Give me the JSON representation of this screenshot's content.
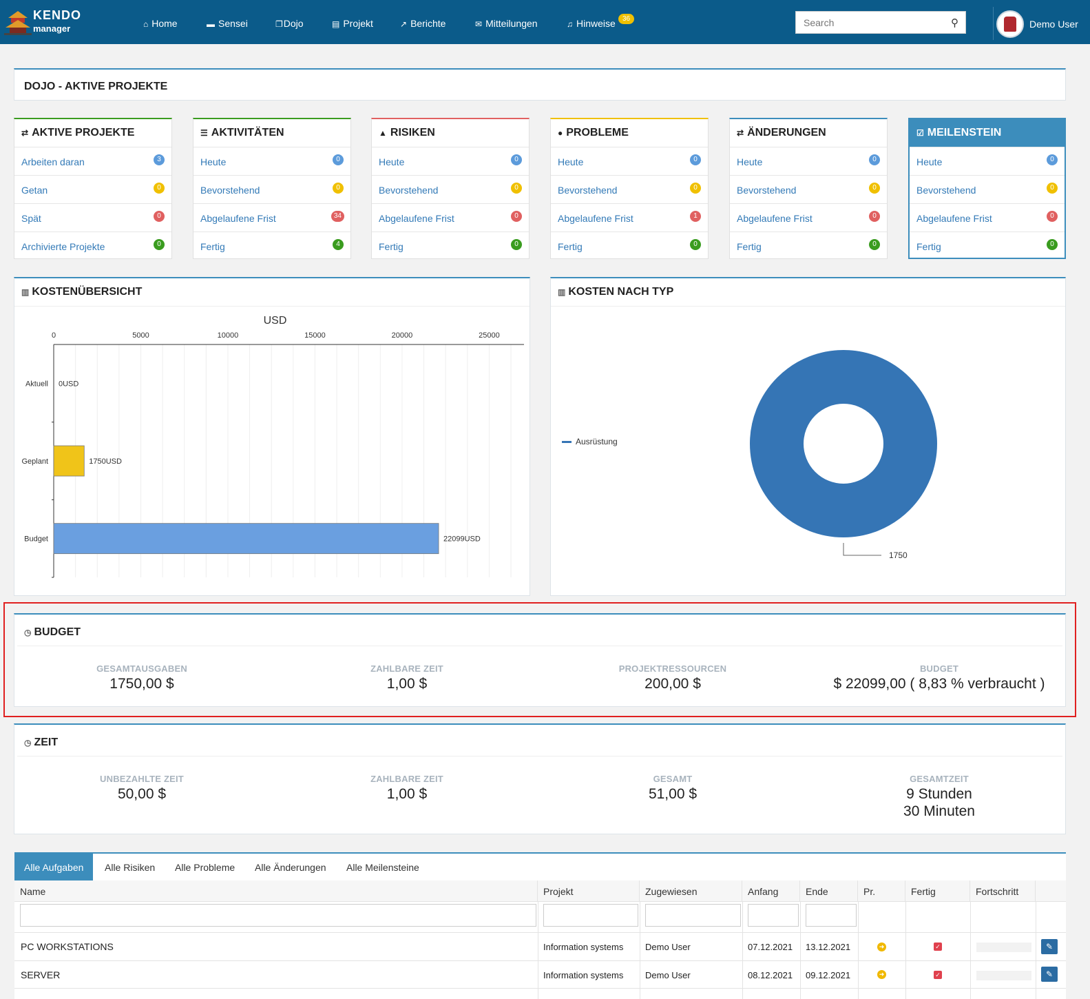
{
  "nav": {
    "logo_line1": "KENDO",
    "logo_line2": "manager",
    "items": [
      {
        "label": "Home",
        "icon": "home-icon"
      },
      {
        "label": "Sensei",
        "icon": "briefcase-icon"
      },
      {
        "label": "Dojo",
        "icon": "window-icon"
      },
      {
        "label": "Projekt",
        "icon": "file-icon"
      },
      {
        "label": "Berichte",
        "icon": "line-chart-icon"
      },
      {
        "label": "Mitteilungen",
        "icon": "envelope-icon"
      },
      {
        "label": "Hinweise",
        "icon": "bell-icon"
      }
    ],
    "hinweise_badge": "36",
    "search_placeholder": "Search",
    "user_name": "Demo User"
  },
  "page_title": "DOJO - AKTIVE PROJEKTE",
  "stat_panels": [
    {
      "title": "AKTIVE PROJEKTE",
      "icon": "exchange-icon",
      "color": "#3a9c1f",
      "rows": [
        {
          "label": "Arbeiten daran",
          "count": "3",
          "color": "#5c9bdb"
        },
        {
          "label": "Getan",
          "count": "0",
          "color": "#f0c000"
        },
        {
          "label": "Spät",
          "count": "0",
          "color": "#e06060"
        },
        {
          "label": "Archivierte Projekte",
          "count": "0",
          "color": "#3a9c1f"
        }
      ]
    },
    {
      "title": "AKTIVITÄTEN",
      "icon": "list-icon",
      "color": "#3a9c1f",
      "rows": [
        {
          "label": "Heute",
          "count": "0",
          "color": "#5c9bdb"
        },
        {
          "label": "Bevorstehend",
          "count": "0",
          "color": "#f0c000"
        },
        {
          "label": "Abgelaufene Frist",
          "count": "34",
          "color": "#e06060"
        },
        {
          "label": "Fertig",
          "count": "4",
          "color": "#3a9c1f"
        }
      ]
    },
    {
      "title": "RISIKEN",
      "icon": "warning-icon",
      "color": "#e06060",
      "rows": [
        {
          "label": "Heute",
          "count": "0",
          "color": "#5c9bdb"
        },
        {
          "label": "Bevorstehend",
          "count": "0",
          "color": "#f0c000"
        },
        {
          "label": "Abgelaufene Frist",
          "count": "0",
          "color": "#e06060"
        },
        {
          "label": "Fertig",
          "count": "0",
          "color": "#3a9c1f"
        }
      ]
    },
    {
      "title": "PROBLEME",
      "icon": "exclamation-circle-icon",
      "color": "#f0c000",
      "rows": [
        {
          "label": "Heute",
          "count": "0",
          "color": "#5c9bdb"
        },
        {
          "label": "Bevorstehend",
          "count": "0",
          "color": "#f0c000"
        },
        {
          "label": "Abgelaufene Frist",
          "count": "1",
          "color": "#e06060"
        },
        {
          "label": "Fertig",
          "count": "0",
          "color": "#3a9c1f"
        }
      ]
    },
    {
      "title": "ÄNDERUNGEN",
      "icon": "exchange-icon",
      "color": "#3c8dbc",
      "rows": [
        {
          "label": "Heute",
          "count": "0",
          "color": "#5c9bdb"
        },
        {
          "label": "Bevorstehend",
          "count": "0",
          "color": "#f0c000"
        },
        {
          "label": "Abgelaufene Frist",
          "count": "0",
          "color": "#e06060"
        },
        {
          "label": "Fertig",
          "count": "0",
          "color": "#3a9c1f"
        }
      ]
    },
    {
      "title": "MEILENSTEIN",
      "icon": "check-square-icon",
      "color": "#3c8dbc",
      "highlight": true,
      "rows": [
        {
          "label": "Heute",
          "count": "0",
          "color": "#5c9bdb"
        },
        {
          "label": "Bevorstehend",
          "count": "0",
          "color": "#f0c000"
        },
        {
          "label": "Abgelaufene Frist",
          "count": "0",
          "color": "#e06060"
        },
        {
          "label": "Fertig",
          "count": "0",
          "color": "#3a9c1f"
        }
      ]
    }
  ],
  "cost_overview": {
    "title": "KOSTENÜBERSICHT",
    "chart_data": {
      "type": "bar",
      "orientation": "horizontal",
      "xlabel": "USD",
      "xlim": [
        0,
        27000
      ],
      "ticks": [
        0,
        5000,
        10000,
        15000,
        20000,
        25000
      ],
      "categories": [
        "Aktuell",
        "Geplant",
        "Budget"
      ],
      "values": [
        0,
        1750,
        22099
      ],
      "value_labels": [
        "0USD",
        "1750USD",
        "22099USD"
      ],
      "colors": [
        "#5c9bdb",
        "#f0c419",
        "#6a9fe0"
      ]
    }
  },
  "cost_by_type": {
    "title": "KOSTEN NACH TYP",
    "chart_data": {
      "type": "pie",
      "donut": true,
      "slices": [
        {
          "label": "Ausrüstung",
          "value": 1750,
          "color": "#3575b5"
        }
      ],
      "value_label": "1750",
      "legend_position": "left"
    }
  },
  "budget": {
    "title": "BUDGET",
    "items": [
      {
        "label": "GESAMTAUSGABEN",
        "value": "1750,00 $"
      },
      {
        "label": "ZAHLBARE ZEIT",
        "value": "1,00 $"
      },
      {
        "label": "PROJEKTRESSOURCEN",
        "value": "200,00 $"
      },
      {
        "label": "BUDGET",
        "value": "$ 22099,00 ( 8,83 % verbraucht )"
      }
    ]
  },
  "time": {
    "title": "ZEIT",
    "items": [
      {
        "label": "UNBEZAHLTE ZEIT",
        "value": "50,00 $"
      },
      {
        "label": "ZAHLBARE ZEIT",
        "value": "1,00 $"
      },
      {
        "label": "GESAMT",
        "value": "51,00 $"
      },
      {
        "label": "GESAMTZEIT",
        "value": "9 Stunden",
        "value2": "30 Minuten"
      }
    ]
  },
  "tabs": [
    "Alle Aufgaben",
    "Alle Risiken",
    "Alle Probleme",
    "Alle Änderungen",
    "Alle Meilensteine"
  ],
  "grid": {
    "columns": [
      "Name",
      "Projekt",
      "Zugewiesen",
      "Anfang",
      "Ende",
      "Pr.",
      "Fertig",
      "Fortschritt"
    ],
    "rows": [
      {
        "name": "PC WORKSTATIONS",
        "project": "Information systems",
        "assigned": "Demo User",
        "start": "07.12.2021",
        "end": "13.12.2021",
        "progress": 0
      },
      {
        "name": "SERVER",
        "project": "Information systems",
        "assigned": "Demo User",
        "start": "08.12.2021",
        "end": "09.12.2021",
        "progress": 0
      }
    ]
  }
}
